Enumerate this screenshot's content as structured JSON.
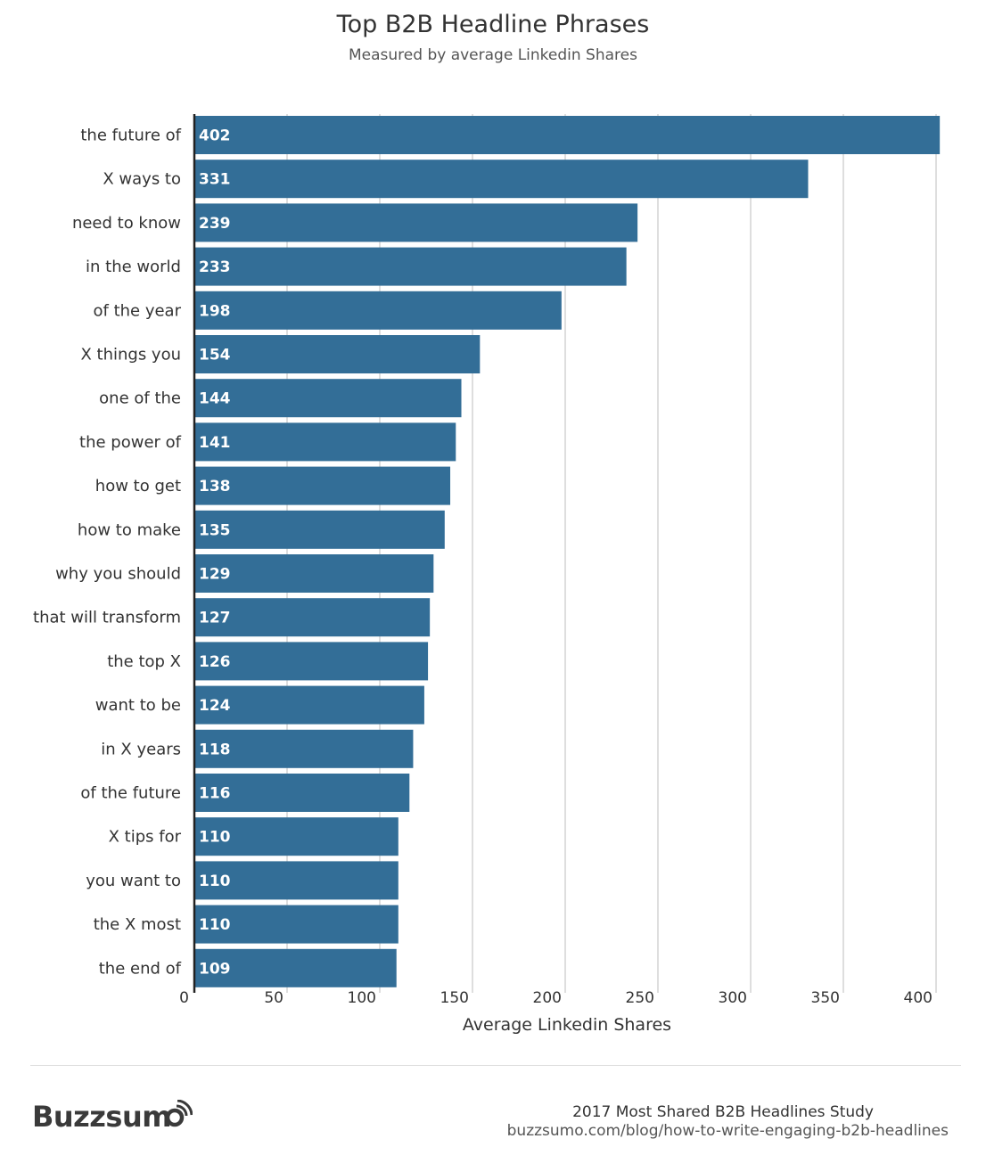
{
  "header": {
    "title": "Top B2B Headline Phrases",
    "subtitle": "Measured by average Linkedin Shares"
  },
  "chart_data": {
    "type": "bar",
    "orientation": "horizontal",
    "title": "Top B2B Headline Phrases",
    "subtitle": "Measured by average Linkedin Shares",
    "xlabel": "Average Linkedin Shares",
    "ylabel": "",
    "xlim": [
      0,
      400
    ],
    "xticks": [
      "0",
      "50",
      "100",
      "150",
      "200",
      "250",
      "300",
      "350",
      "400"
    ],
    "grid": true,
    "bar_color": "#336e97",
    "categories": [
      "the future of",
      "X ways to",
      "need to know",
      "in the world",
      "of the year",
      "X things you",
      "one of the",
      "the power of",
      "how to get",
      "how to make",
      "why you should",
      "that will transform",
      "the top X",
      "want to be",
      "in X years",
      "of the future",
      "X tips for",
      "you want to",
      "the X most",
      "the end of"
    ],
    "values": [
      402,
      331,
      239,
      233,
      198,
      154,
      144,
      141,
      138,
      135,
      129,
      127,
      126,
      124,
      118,
      116,
      110,
      110,
      110,
      109
    ]
  },
  "footer": {
    "brand": "Buzzsum",
    "source_title": "2017 Most Shared B2B Headlines Study",
    "source_url": "buzzsumo.com/blog/how-to-write-engaging-b2b-headlines"
  }
}
